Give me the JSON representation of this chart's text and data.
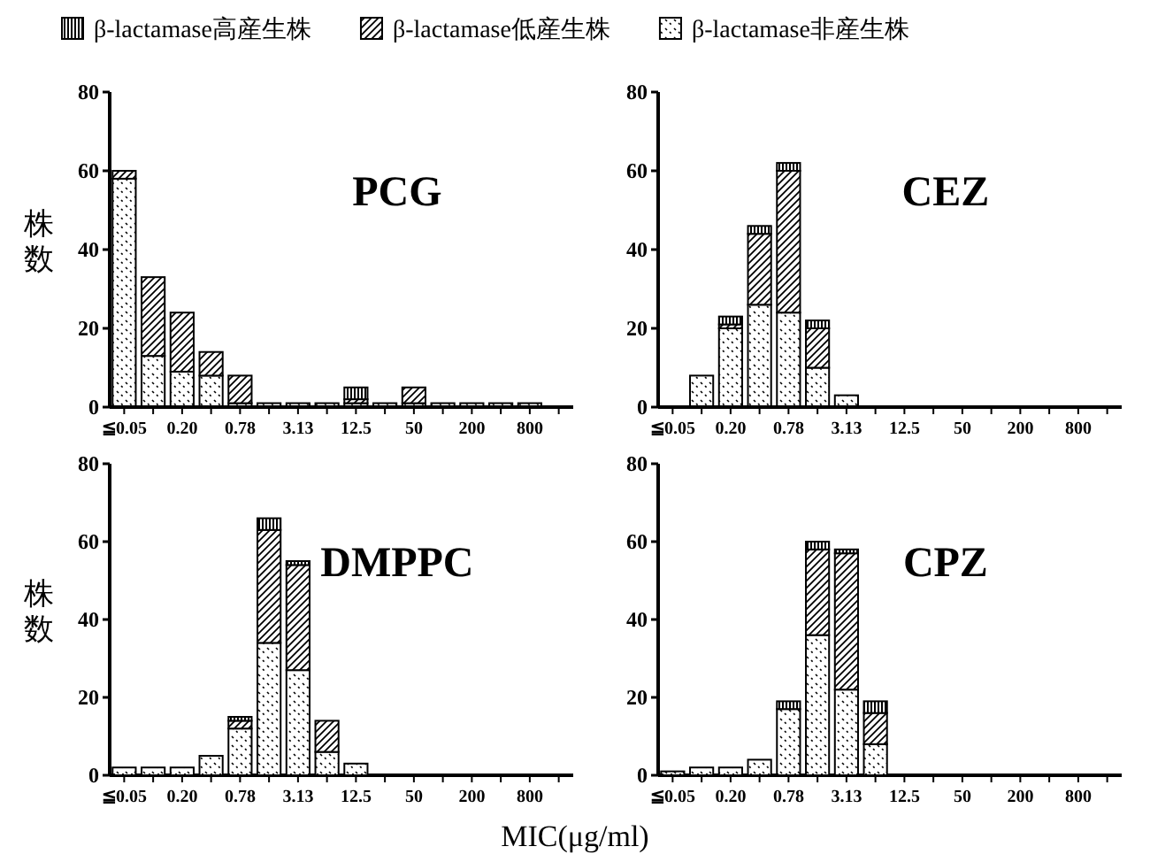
{
  "chart_data": [
    {
      "type": "bar",
      "stacked": true,
      "title": "PCG",
      "ylabel": "株数",
      "legend": "top",
      "categories": [
        "≦0.05",
        null,
        "0.20",
        null,
        "0.78",
        null,
        "3.13",
        null,
        "12.5",
        null,
        "50",
        null,
        "200",
        null,
        "800",
        null
      ],
      "ylim": [
        0,
        80
      ],
      "yticks": [
        0,
        20,
        40,
        60,
        80
      ],
      "series": [
        {
          "name": "β-lactamase非産生株",
          "color": "#000000",
          "values": [
            58,
            13,
            9,
            8,
            1,
            1,
            1,
            1,
            1,
            1,
            1,
            1,
            1,
            1,
            1,
            0
          ]
        },
        {
          "name": "β-lactamase低産生株",
          "color": "#000000",
          "values": [
            2,
            20,
            15,
            6,
            7,
            0,
            0,
            0,
            1,
            0,
            4,
            0,
            0,
            0,
            0,
            0
          ]
        },
        {
          "name": "β-lactamase高産生株",
          "color": "#000000",
          "values": [
            0,
            0,
            0,
            0,
            0,
            0,
            0,
            0,
            3,
            0,
            0,
            0,
            0,
            0,
            0,
            0
          ]
        }
      ]
    },
    {
      "type": "bar",
      "stacked": true,
      "title": "CEZ",
      "categories": [
        "≦0.05",
        null,
        "0.20",
        null,
        "0.78",
        null,
        "3.13",
        null,
        "12.5",
        null,
        "50",
        null,
        "200",
        null,
        "800",
        null
      ],
      "ylim": [
        0,
        80
      ],
      "yticks": [
        0,
        20,
        40,
        60,
        80
      ],
      "series": [
        {
          "color": "#000000",
          "values": [
            0,
            8,
            20,
            26,
            24,
            10,
            3,
            0,
            0,
            0,
            0,
            0,
            0,
            0,
            0,
            0
          ]
        },
        {
          "color": "#000000",
          "values": [
            0,
            0,
            1,
            18,
            36,
            10,
            0,
            0,
            0,
            0,
            0,
            0,
            0,
            0,
            0,
            0
          ]
        },
        {
          "color": "#000000",
          "values": [
            0,
            0,
            2,
            2,
            2,
            2,
            0,
            0,
            0,
            0,
            0,
            0,
            0,
            0,
            0,
            0
          ]
        }
      ]
    },
    {
      "type": "bar",
      "stacked": true,
      "title": "DMPPC",
      "ylabel": "株数",
      "xlabel": "MIC(μg/ml)",
      "categories": [
        "≦0.05",
        null,
        "0.20",
        null,
        "0.78",
        null,
        "3.13",
        null,
        "12.5",
        null,
        "50",
        null,
        "200",
        null,
        "800",
        null
      ],
      "ylim": [
        0,
        80
      ],
      "yticks": [
        0,
        20,
        40,
        60,
        80
      ],
      "series": [
        {
          "color": "#000000",
          "values": [
            2,
            2,
            2,
            5,
            12,
            34,
            27,
            6,
            3,
            0,
            0,
            0,
            0,
            0,
            0,
            0
          ]
        },
        {
          "color": "#000000",
          "values": [
            0,
            0,
            0,
            0,
            2,
            29,
            27,
            8,
            0,
            0,
            0,
            0,
            0,
            0,
            0,
            0
          ]
        },
        {
          "color": "#000000",
          "values": [
            0,
            0,
            0,
            0,
            1,
            3,
            1,
            0,
            0,
            0,
            0,
            0,
            0,
            0,
            0,
            0
          ]
        }
      ]
    },
    {
      "type": "bar",
      "stacked": true,
      "title": "CPZ",
      "categories": [
        "≦0.05",
        null,
        "0.20",
        null,
        "0.78",
        null,
        "3.13",
        null,
        "12.5",
        null,
        "50",
        null,
        "200",
        null,
        "800",
        null
      ],
      "ylim": [
        0,
        80
      ],
      "yticks": [
        0,
        20,
        40,
        60,
        80
      ],
      "series": [
        {
          "color": "#000000",
          "values": [
            1,
            2,
            2,
            4,
            17,
            36,
            22,
            8,
            0,
            0,
            0,
            0,
            0,
            0,
            0,
            0
          ]
        },
        {
          "color": "#000000",
          "values": [
            0,
            0,
            0,
            0,
            0,
            22,
            35,
            8,
            0,
            0,
            0,
            0,
            0,
            0,
            0,
            0
          ]
        },
        {
          "color": "#000000",
          "values": [
            0,
            0,
            0,
            0,
            2,
            2,
            1,
            3,
            0,
            0,
            0,
            0,
            0,
            0,
            0,
            0
          ]
        }
      ]
    }
  ]
}
